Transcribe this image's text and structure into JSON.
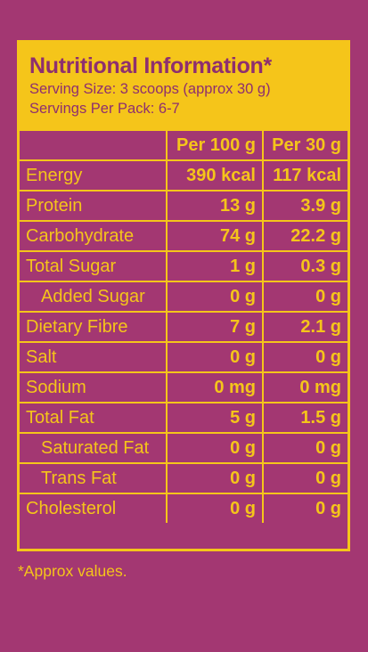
{
  "panel": {
    "title": "Nutritional Information*",
    "serving_size": "Serving Size: 3 scoops (approx 30 g)",
    "servings_per_pack": "Servings Per Pack: 6-7"
  },
  "table": {
    "headers": [
      "",
      "Per 100 g",
      "Per 30 g"
    ],
    "rows": [
      {
        "label": "Energy",
        "per100": "390 kcal",
        "per30": "117 kcal",
        "indent": false
      },
      {
        "label": "Protein",
        "per100": "13 g",
        "per30": "3.9 g",
        "indent": false
      },
      {
        "label": "Carbohydrate",
        "per100": "74 g",
        "per30": "22.2 g",
        "indent": false
      },
      {
        "label": "Total Sugar",
        "per100": "1 g",
        "per30": "0.3 g",
        "indent": false
      },
      {
        "label": "Added Sugar",
        "per100": "0 g",
        "per30": "0 g",
        "indent": true
      },
      {
        "label": "Dietary Fibre",
        "per100": "7 g",
        "per30": "2.1 g",
        "indent": false
      },
      {
        "label": "Salt",
        "per100": "0 g",
        "per30": "0 g",
        "indent": false
      },
      {
        "label": "Sodium",
        "per100": "0 mg",
        "per30": "0 mg",
        "indent": false
      },
      {
        "label": "Total Fat",
        "per100": "5 g",
        "per30": "1.5 g",
        "indent": false
      },
      {
        "label": "Saturated Fat",
        "per100": "0 g",
        "per30": "0 g",
        "indent": true
      },
      {
        "label": "Trans Fat",
        "per100": "0 g",
        "per30": "0 g",
        "indent": true
      },
      {
        "label": "Cholesterol",
        "per100": "0 g",
        "per30": "0 g",
        "indent": false
      }
    ]
  },
  "footnote": "*Approx values.",
  "colors": {
    "background": "#a33772",
    "accent_yellow": "#f5c51a",
    "header_text": "#8e2f6f"
  }
}
